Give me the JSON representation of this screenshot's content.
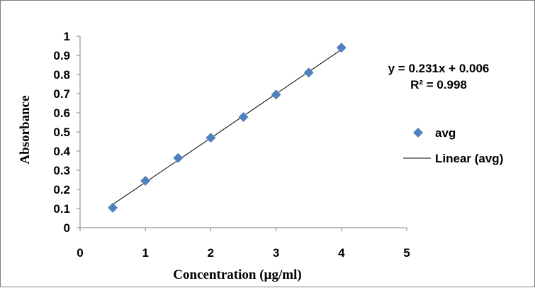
{
  "chart_data": {
    "type": "scatter",
    "title": "",
    "xlabel": "Concentration (µg/ml)",
    "ylabel": "Absorbance",
    "xlim": [
      0,
      5
    ],
    "ylim": [
      0,
      1
    ],
    "xticks": [
      "0",
      "1",
      "2",
      "3",
      "4",
      "5"
    ],
    "yticks": [
      "0",
      "0.1",
      "0.2",
      "0.3",
      "0.4",
      "0.5",
      "0.6",
      "0.7",
      "0.8",
      "0.9",
      "1"
    ],
    "grid": false,
    "legend": "right",
    "series": [
      {
        "name": "avg",
        "marker": "diamond",
        "color": "#4F81BD",
        "x": [
          0.5,
          1,
          1.5,
          2,
          2.5,
          3,
          3.5,
          4
        ],
        "y": [
          0.104,
          0.245,
          0.364,
          0.47,
          0.578,
          0.695,
          0.81,
          0.94
        ]
      }
    ],
    "trendline": {
      "name": "Linear (avg)",
      "color": "#000000",
      "slope": 0.231,
      "intercept": 0.006,
      "x_range": [
        0.5,
        4
      ]
    },
    "equation": "y = 0.231x + 0.006",
    "r_squared": "R² = 0.998"
  }
}
